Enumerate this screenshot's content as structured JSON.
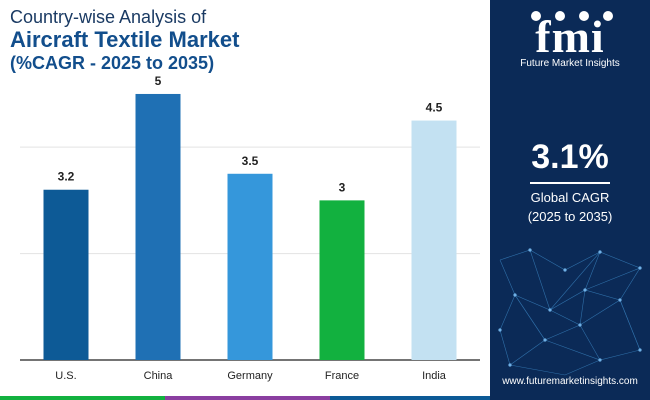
{
  "title": {
    "line1": "Country-wise Analysis of",
    "line2": "Aircraft Textile Market",
    "line3": "(%CAGR - 2025 to 2035)"
  },
  "chart_data": {
    "type": "bar",
    "categories": [
      "U.S.",
      "China",
      "Germany",
      "France",
      "India"
    ],
    "values": [
      3.2,
      5,
      3.5,
      3,
      4.5
    ],
    "value_labels": [
      "3.2",
      "5",
      "3.5",
      "3",
      "4.5"
    ],
    "colors": [
      "#0d5a96",
      "#1f70b4",
      "#3597db",
      "#12b13f",
      "#c3e1f2"
    ],
    "ylim": [
      0,
      5.3
    ],
    "grid": true,
    "xlabel": "",
    "ylabel": ""
  },
  "sidebar": {
    "logo_text": "fmi",
    "logo_subtitle": "Future Market Insights",
    "cagr_value": "3.1%",
    "cagr_label_line1": "Global CAGR",
    "cagr_label_line2": "(2025 to 2035)",
    "website": "www.futuremarketinsights.com"
  },
  "colors": {
    "sidebar_bg": "#0b2a57",
    "title_primary": "#124e8c",
    "strip": [
      "#12b13f",
      "#8a3ea0",
      "#0d5a96"
    ]
  }
}
